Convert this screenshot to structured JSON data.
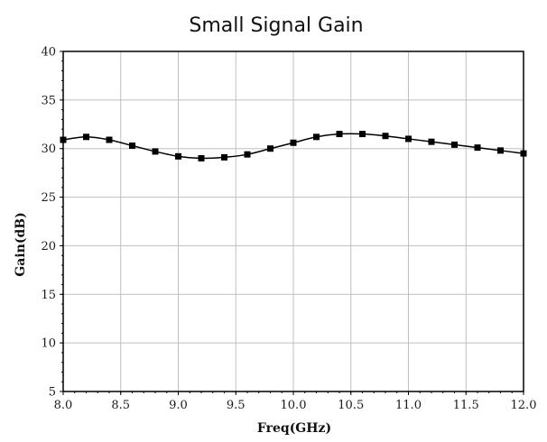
{
  "chart_data": {
    "type": "line",
    "title": "Small Signal Gain",
    "xlabel": "Freq(GHz)",
    "ylabel": "Gain(dB)",
    "xlim": [
      8.0,
      12.0
    ],
    "ylim": [
      5,
      40
    ],
    "xticks": [
      8.0,
      8.5,
      9.0,
      9.5,
      10.0,
      10.5,
      11.0,
      11.5,
      12.0
    ],
    "xtick_labels": [
      "8.0",
      "8.5",
      "9.0",
      "9.5",
      "10.0",
      "10.5",
      "11.0",
      "11.5",
      "12.0"
    ],
    "yticks": [
      5,
      10,
      15,
      20,
      25,
      30,
      35,
      40
    ],
    "ytick_labels": [
      "5",
      "10",
      "15",
      "20",
      "25",
      "30",
      "35",
      "40"
    ],
    "grid": true,
    "legend": false,
    "series": [
      {
        "marker": "square",
        "color": "#000000",
        "x": [
          8.0,
          8.2,
          8.4,
          8.6,
          8.8,
          9.0,
          9.2,
          9.4,
          9.6,
          9.8,
          10.0,
          10.2,
          10.4,
          10.6,
          10.8,
          11.0,
          11.2,
          11.4,
          11.6,
          11.8,
          12.0
        ],
        "y": [
          30.9,
          31.2,
          30.9,
          30.3,
          29.7,
          29.2,
          29.0,
          29.1,
          29.4,
          30.0,
          30.6,
          31.2,
          31.5,
          31.5,
          31.3,
          31.0,
          30.7,
          30.4,
          30.1,
          29.8,
          29.5
        ]
      }
    ]
  }
}
